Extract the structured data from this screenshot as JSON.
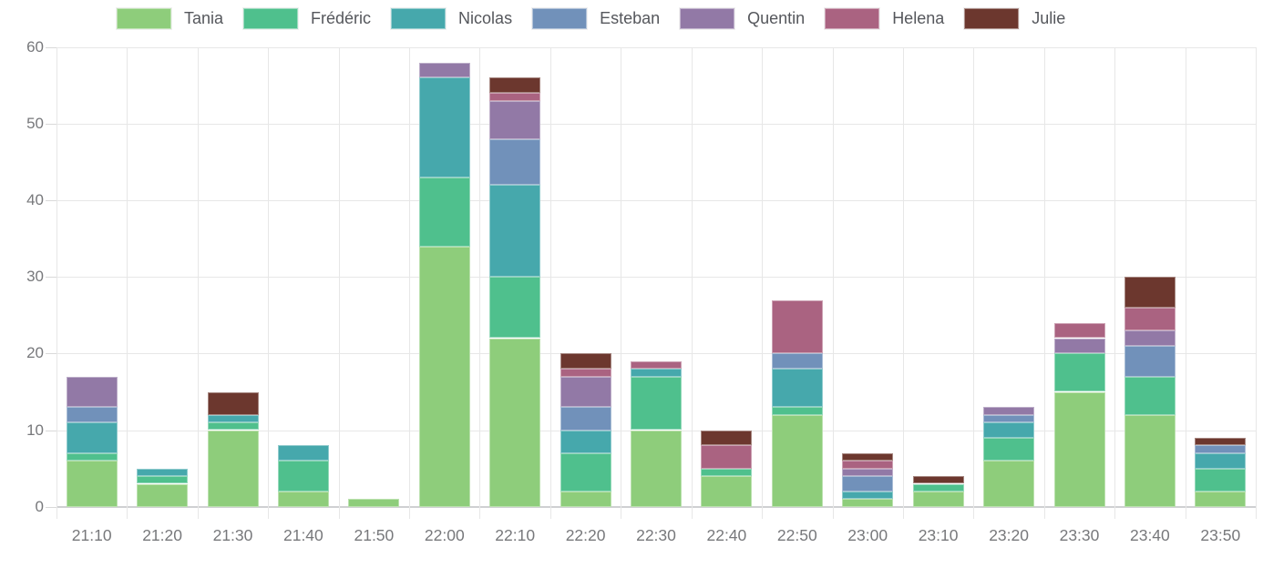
{
  "chart_data": {
    "type": "bar",
    "stacked": true,
    "title": "",
    "xlabel": "",
    "ylabel": "",
    "legend_position": "top",
    "grid": true,
    "ylim": [
      0,
      60
    ],
    "yticks": [
      0,
      10,
      20,
      30,
      40,
      50,
      60
    ],
    "categories": [
      "21:10",
      "21:20",
      "21:30",
      "21:40",
      "21:50",
      "22:00",
      "22:10",
      "22:20",
      "22:30",
      "22:40",
      "22:50",
      "23:00",
      "23:10",
      "23:20",
      "23:30",
      "23:40",
      "23:50"
    ],
    "series": [
      {
        "name": "Tania",
        "color": "#8ecd7b",
        "values": [
          6,
          3,
          10,
          2,
          1,
          34,
          22,
          2,
          10,
          4,
          12,
          1,
          2,
          6,
          15,
          12,
          2
        ]
      },
      {
        "name": "Frédéric",
        "color": "#4fc08d",
        "values": [
          1,
          1,
          1,
          4,
          0,
          9,
          8,
          5,
          7,
          1,
          1,
          0,
          1,
          3,
          5,
          5,
          3
        ]
      },
      {
        "name": "Nicolas",
        "color": "#46a8ac",
        "values": [
          4,
          1,
          1,
          2,
          0,
          13,
          12,
          3,
          1,
          0,
          5,
          1,
          0,
          2,
          0,
          0,
          2
        ]
      },
      {
        "name": "Esteban",
        "color": "#7191ba",
        "values": [
          2,
          0,
          0,
          0,
          0,
          0,
          6,
          3,
          0,
          0,
          2,
          2,
          0,
          1,
          0,
          4,
          1
        ]
      },
      {
        "name": "Quentin",
        "color": "#9279a6",
        "values": [
          4,
          0,
          0,
          0,
          0,
          2,
          5,
          4,
          0,
          0,
          0,
          1,
          0,
          1,
          2,
          2,
          0
        ]
      },
      {
        "name": "Helena",
        "color": "#aa6381",
        "values": [
          0,
          0,
          0,
          0,
          0,
          0,
          1,
          1,
          1,
          3,
          7,
          1,
          0,
          0,
          2,
          3,
          0
        ]
      },
      {
        "name": "Julie",
        "color": "#6c372e",
        "values": [
          0,
          0,
          3,
          0,
          0,
          0,
          2,
          2,
          0,
          2,
          0,
          1,
          1,
          0,
          0,
          4,
          1
        ]
      }
    ],
    "totals": [
      17,
      5,
      15,
      8,
      1,
      58,
      56,
      20,
      19,
      10,
      27,
      7,
      4,
      13,
      24,
      30,
      9
    ]
  }
}
